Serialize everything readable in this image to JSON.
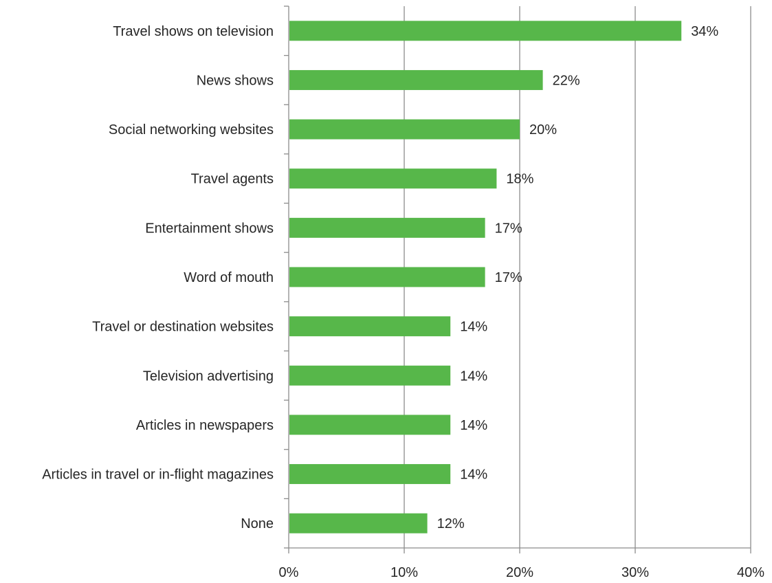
{
  "chart_data": {
    "type": "bar",
    "orientation": "horizontal",
    "title": "",
    "xlabel": "",
    "ylabel": "",
    "categories": [
      "Travel shows on television",
      "News shows",
      "Social networking websites",
      "Travel agents",
      "Entertainment shows",
      "Word of mouth",
      "Travel or destination websites",
      "Television advertising",
      "Articles in newspapers",
      "Articles in travel or in-flight magazines",
      "None"
    ],
    "values": [
      34,
      22,
      20,
      18,
      17,
      17,
      14,
      14,
      14,
      14,
      12
    ],
    "value_labels": [
      "34%",
      "22%",
      "20%",
      "18%",
      "17%",
      "17%",
      "14%",
      "14%",
      "14%",
      "14%",
      "12%"
    ],
    "xlim": [
      0,
      40
    ],
    "x_ticks": [
      0,
      10,
      20,
      30,
      40
    ],
    "x_tick_labels": [
      "0%",
      "10%",
      "20%",
      "30%",
      "40%"
    ],
    "grid": "vertical",
    "legend": "none",
    "colors": {
      "bar": "#57b74a",
      "grid": "#8c8c8c",
      "axis": "#8c8c8c",
      "text": "#262626"
    }
  }
}
